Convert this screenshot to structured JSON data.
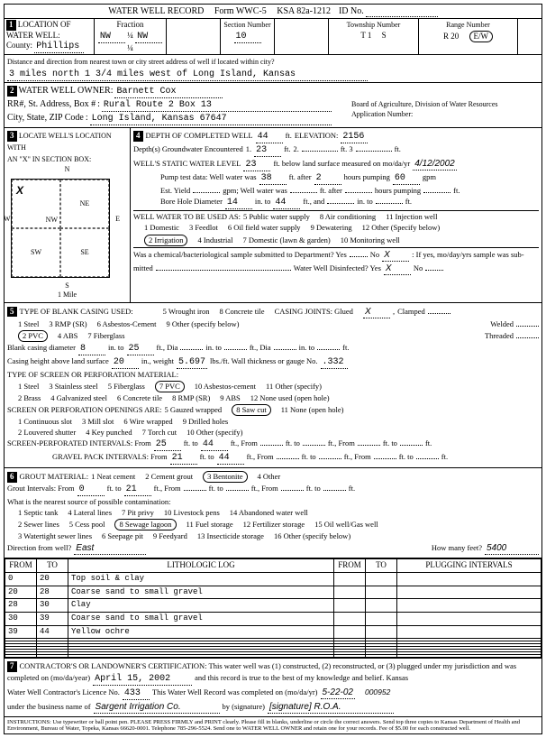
{
  "header": {
    "title": "WATER WELL RECORD",
    "form": "Form WWC-5",
    "ksa": "KSA 82a-1212",
    "id_label": "ID No."
  },
  "location": {
    "section_num": "1",
    "section_title": "LOCATION OF WATER WELL:",
    "county_label": "County:",
    "county": "Phillips",
    "fraction_label": "Fraction",
    "frac1": "NW",
    "frac2": "¼",
    "frac3": "NW",
    "frac4": "¼",
    "section_no_label": "Section Number",
    "section_no": "10",
    "township_label": "Township Number",
    "township": "T  1",
    "township_dir": "S",
    "range_label": "Range Number",
    "range": "R 20",
    "range_dir": "E/W",
    "distance_label": "Distance and direction from nearest town or city street address of well if located within city?",
    "distance_value": "3 miles north 1 3/4 miles west of Long Island, Kansas"
  },
  "owner": {
    "num": "2",
    "title": "WATER WELL OWNER:",
    "name": "Barnett Cox",
    "addr_label": "RR#, St. Address, Box #",
    "addr": "Rural Route 2 Box 13",
    "city_label": "City, State, ZIP Code",
    "city": "Long Island, Kansas  67647",
    "board": "Board of Agriculture, Division of Water Resources",
    "app_label": "Application Number:"
  },
  "loc_depth": {
    "num3": "3",
    "title3": "LOCATE WELL'S LOCATION WITH",
    "sub3": "AN \"X\" IN SECTION BOX:",
    "compass": {
      "n": "N",
      "s": "S",
      "e": "E",
      "w": "W",
      "nw": "NW",
      "ne": "NE",
      "sw": "SW",
      "se": "SE",
      "x": "X"
    },
    "mile": "1 Mile",
    "num4": "4",
    "title4": "DEPTH OF COMPLETED WELL",
    "depth_completed": "44",
    "ft": "ft.",
    "elev_label": "ELEVATION:",
    "elevation": "2156",
    "depths_enc": "Depth(s) Groundwater Encountered",
    "d1": "1.",
    "d1v": "23",
    "d2": "2.",
    "d3": "ft. 3",
    "static_label": "WELL'S STATIC WATER LEVEL",
    "static": "23",
    "static_tail": "ft. below land surface measured on mo/da/yr",
    "static_date": "4/12/2002",
    "pump_label": "Pump test data:  Well water was",
    "pump_v": "38",
    "after": "ft. after",
    "hrs": "2",
    "hrs_tail": "hours pumping",
    "gpm": "60",
    "gpm_l": "gpm",
    "est_label": "Est. Yield",
    "est_tail": "gpm;  Well water was",
    "est_after": "ft. after",
    "est_hrs": "hours pumping",
    "est_ft": "ft.",
    "bore_label": "Bore Hole Diameter",
    "bore1": "14",
    "into": "in. to",
    "bore2": "44",
    "ftand": "ft., and",
    "into2": "in. to",
    "ft2": "ft.",
    "use_label": "WELL WATER TO BE USED AS:",
    "u1": "1 Domestic",
    "u2": "2 Irrigation",
    "u3": "3 Feedlot",
    "u4": "4 Industrial",
    "u5": "5 Public water supply",
    "u6": "6 Oil field water supply",
    "u7": "7 Domestic (lawn & garden)",
    "u8": "8 Air conditioning",
    "u9": "9 Dewatering",
    "u10": "10 Monitoring well",
    "u11": "11 Injection well",
    "u12": "12 Other (Specify below)",
    "chem": "Was a chemical/bacteriological sample submitted to Department? Yes",
    "chem_no": "No",
    "chem_x": "X",
    "chem_tail": ": If yes, mo/day/yrs sample was sub-",
    "mitted": "mitted",
    "disinf": "Water Well Disinfected?  Yes",
    "disinf_x": "X",
    "disinf_no": "No"
  },
  "casing": {
    "num": "5",
    "title": "TYPE OF BLANK CASING USED:",
    "c1": "1 Steel",
    "c2": "2 PVC",
    "c3": "3 RMP (SR)",
    "c4": "4 ABS",
    "c5": "5 Wrought iron",
    "c6": "6 Asbestos-Cement",
    "c7": "7 Fiberglass",
    "c8": "8 Concrete tile",
    "c9": "9 Other (specify below)",
    "joints": "CASING JOINTS: Glued",
    "joints_x": "X",
    "clamped": "Clamped",
    "welded": "Welded",
    "threaded": "Threaded",
    "blank_dia": "Blank casing diameter",
    "bd1": "8",
    "into": "in. to",
    "bd2": "25",
    "ftdia": "ft., Dia",
    "into2": "in. to",
    "ftdia2": "ft., Dia",
    "into3": "in. to",
    "ft3": "ft.",
    "height": "Casing height above land surface",
    "hv": "20",
    "inwt": "in., weight",
    "wt": "5.697",
    "lbsft": "lbs./ft. Wall thickness or gauge No.",
    "gauge": ".332",
    "screen_title": "TYPE OF SCREEN OR PERFORATION MATERIAL:",
    "s1": "1 Steel",
    "s2": "2 Brass",
    "s3": "3 Stainless steel",
    "s4": "4 Galvanized steel",
    "s5": "5 Fiberglass",
    "s6": "6 Concrete tile",
    "s7": "7 PVC",
    "s8": "8 RMP (SR)",
    "s9": "9 ABS",
    "s10": "10 Asbestos-cement",
    "s11": "11 Other (specify)",
    "s12": "12 None used (open hole)",
    "open_title": "SCREEN OR PERFORATION OPENINGS ARE:",
    "o1": "1 Continuous slot",
    "o2": "2 Louvered shutter",
    "o3": "3 Mill slot",
    "o4": "4 Key punched",
    "o5": "5 Gauzed wrapped",
    "o6": "6 Wire wrapped",
    "o7": "7 Torch cut",
    "o8": "8 Saw cut",
    "o9": "9 Drilled holes",
    "o10": "10 Other (specify)",
    "o11": "11 None (open hole)",
    "sp_label": "SCREEN-PERFORATED INTERVALS:  From",
    "sp_from": "25",
    "ftto": "ft. to",
    "sp_to": "44",
    "fttail": "ft., From",
    "fttail2": "ft. to",
    "fttail3": "ft., From",
    "fttail4": "ft. to",
    "fttail5": "ft.",
    "gp_label": "GRAVEL PACK INTERVALS:  From",
    "gp_from": "21",
    "gp_to": "44"
  },
  "grout": {
    "num": "6",
    "title": "GROUT MATERIAL:",
    "g1": "1 Neat cement",
    "g2": "2 Cement grout",
    "g3": "3 Bentonite",
    "g4": "4 Other",
    "gint": "Grout Intervals:  From",
    "gi_from": "0",
    "ftto": "ft. to",
    "gi_to": "21",
    "tail": "ft., From",
    "tail2": "ft. to",
    "tail3": "ft.",
    "src": "What is the nearest source of possible contamination:",
    "p1": "1 Septic tank",
    "p2": "2 Sewer lines",
    "p3": "3 Watertight sewer lines",
    "p4": "4 Lateral lines",
    "p5": "5 Cess pool",
    "p6": "6 Seepage pit",
    "p7": "7 Pit privy",
    "p8": "8 Sewage lagoon",
    "p9": "9 Feedyard",
    "p10": "10 Livestock pens",
    "p11": "11 Fuel storage",
    "p12": "12 Fertilizer storage",
    "p13": "13 Insecticide storage",
    "p14": "14 Abandoned water well",
    "p15": "15 Oil well/Gas well",
    "p16": "16 Other (specify below)",
    "dir": "Direction from well?",
    "dir_v": "East",
    "feet": "How many feet?",
    "feet_v": "5400"
  },
  "log": {
    "h_from": "FROM",
    "h_to": "TO",
    "h_lith": "LITHOLOGIC LOG",
    "h_plug": "PLUGGING INTERVALS",
    "rows": [
      {
        "from": "0",
        "to": "20",
        "lith": "Top soil & clay"
      },
      {
        "from": "20",
        "to": "28",
        "lith": "Coarse sand to small gravel"
      },
      {
        "from": "28",
        "to": "30",
        "lith": "Clay"
      },
      {
        "from": "30",
        "to": "39",
        "lith": "Coarse sand to small gravel"
      },
      {
        "from": "39",
        "to": "44",
        "lith": "Yellow ochre"
      }
    ]
  },
  "cert": {
    "num": "7",
    "line1": "CONTRACTOR'S OR LANDOWNER'S CERTIFICATION: This water well was (1) constructed, (2) reconstructed, or (3) plugged under my jurisdiction and was",
    "line2a": "completed on (mo/da/year)",
    "date": "April 15, 2002",
    "line2b": "and this record is true to the best of my knowledge and belief. Kansas",
    "line3a": "Water Well Contractor's Licence No.",
    "lic": "433",
    "line3b": "This Water Well Record was completed on (mo/da/yr)",
    "date2": "5-22-02",
    "seq": "000952",
    "line4a": "under the business name of",
    "biz": "Sargent Irrigation Co.",
    "by": "by (signature)",
    "sig": "[signature] R.O.A.",
    "instr": "INSTRUCTIONS: Use typewriter or ball point pen. PLEASE PRESS FIRMLY and PRINT clearly. Please fill in blanks, underline or circle the correct answers. Send top three copies to Kansas Department of Health and Environment, Bureau of Water, Topeka, Kansas 66620-0001. Telephone 785-296-5524. Send one to WATER WELL OWNER and retain one for your records. Fee of $5.00 for each constructed well."
  }
}
